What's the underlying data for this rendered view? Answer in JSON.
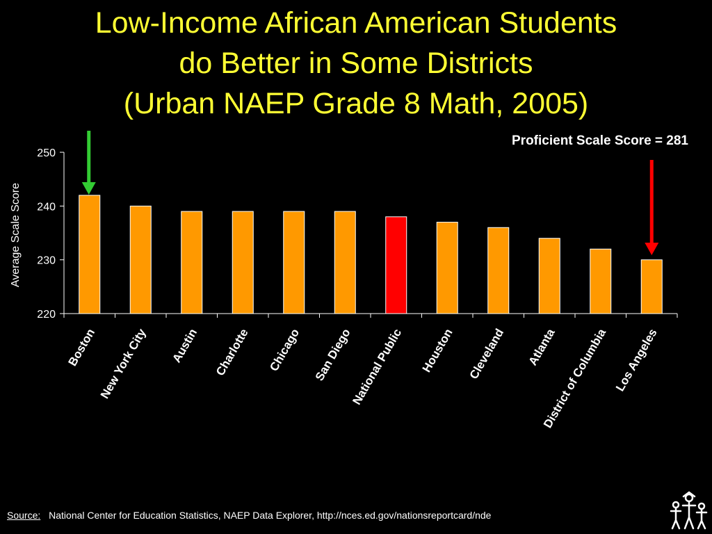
{
  "title_lines": [
    "Low-Income African American Students",
    "do Better in Some Districts",
    "(Urban NAEP Grade 8 Math, 2005)"
  ],
  "annotation": "Proficient Scale Score = 281",
  "source": {
    "label": "Source:",
    "text": "National Center for Education Statistics, NAEP Data Explorer, http://nces.ed.gov/nationsreportcard/nde"
  },
  "colors": {
    "background": "#000000",
    "title": "#FFFF33",
    "bar": "#FF9900",
    "bar_highlight": "#FF0000",
    "arrow_best": "#33CC33",
    "arrow_worst": "#FF0000",
    "text": "#FFFFFF"
  },
  "chart_data": {
    "type": "bar",
    "title": "Low-Income African American Students do Better in Some Districts (Urban NAEP Grade 8 Math, 2005)",
    "ylabel": "Average Scale Score",
    "xlabel": "",
    "ylim": [
      220,
      250
    ],
    "yticks": [
      220,
      230,
      240,
      250
    ],
    "grid": false,
    "legend": "none",
    "categories": [
      "Boston",
      "New York City",
      "Austin",
      "Charlotte",
      "Chicago",
      "San Diego",
      "National Public",
      "Houston",
      "Cleveland",
      "Atlanta",
      "District of Columbia",
      "Los Angeles"
    ],
    "values": [
      242,
      240,
      239,
      239,
      239,
      239,
      238,
      237,
      236,
      234,
      232,
      230
    ],
    "highlight": "National Public",
    "arrows": [
      {
        "category": "Boston",
        "color": "green"
      },
      {
        "category": "Los Angeles",
        "color": "red"
      }
    ]
  }
}
